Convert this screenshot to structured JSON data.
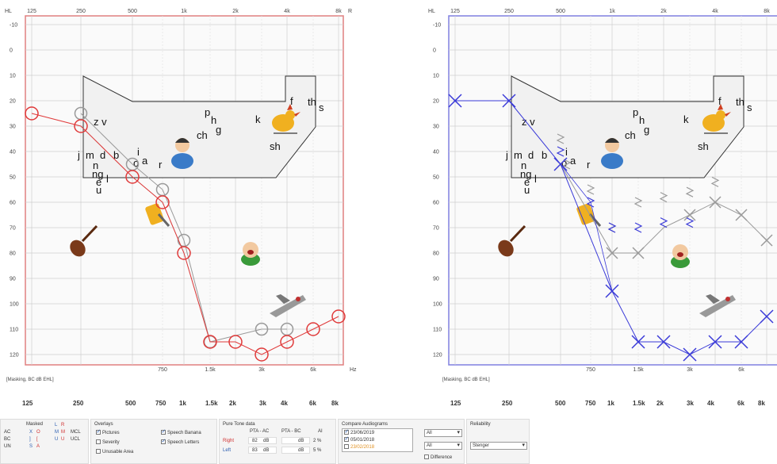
{
  "top_axis_labels": [
    "125",
    "250",
    "500",
    "1k",
    "2k",
    "4k",
    "8k"
  ],
  "hl_label": "HL",
  "ear_label_right": "R",
  "ear_label_left": "L",
  "hz_label": "Hz",
  "inter_labels": [
    "750",
    "1.5k",
    "3k",
    "6k"
  ],
  "db_labels": [
    "-10",
    "0",
    "10",
    "20",
    "30",
    "40",
    "50",
    "60",
    "70",
    "80",
    "90",
    "100",
    "110",
    "120"
  ],
  "masking_note": "[Masking, BC dB EHL]",
  "speech_letters": {
    "row_zv": "z  v",
    "p": "p",
    "h": "h",
    "g": "g",
    "ch": "ch",
    "k": "k",
    "f": "f",
    "th": "th",
    "s": "s",
    "sh": "sh",
    "j": "j",
    "m": "m",
    "d": "d",
    "b": "b",
    "i": "i",
    "o": "o",
    "a": "a",
    "r": "r",
    "n": "n",
    "ng": "ng",
    "e": "e",
    "l": "l",
    "u": "u"
  },
  "freq_bar": [
    "125",
    "250",
    "500",
    "750",
    "1k",
    "1.5k",
    "2k",
    "3k",
    "4k",
    "6k",
    "8k"
  ],
  "masked_box": {
    "title": "Masked",
    "rows": [
      "AC",
      "BC",
      "UN"
    ],
    "lr": [
      "L",
      "R"
    ],
    "mcl": "MCL",
    "ucl": "UCL",
    "sym": [
      [
        "X",
        "O"
      ],
      [
        "]",
        "["
      ],
      [
        "S",
        "A"
      ]
    ],
    "mm": [
      "M",
      "M"
    ],
    "uu": [
      "U",
      "U"
    ]
  },
  "overlays": {
    "title": "Overlays",
    "items": [
      {
        "label": "Pictures",
        "checked": true
      },
      {
        "label": "Severity",
        "checked": false
      },
      {
        "label": "Unusable Area",
        "checked": false
      },
      {
        "label": "Speech Banana",
        "checked": true
      },
      {
        "label": "Speech Letters",
        "checked": true
      }
    ]
  },
  "pure_tone": {
    "title": "Pure Tone data",
    "headers": [
      "PTA - AC",
      "PTA - BC",
      "AI"
    ],
    "rows": [
      {
        "ear": "Right",
        "ac": "82",
        "ac_unit": "dB",
        "bc_unit": "dB",
        "ai": "2",
        "ai_unit": "%"
      },
      {
        "ear": "Left",
        "ac": "83",
        "ac_unit": "dB",
        "bc_unit": "dB",
        "ai": "5",
        "ai_unit": "%"
      }
    ]
  },
  "compare": {
    "title": "Compare Audiograms",
    "dates": [
      "23/06/2019",
      "05/01/2018",
      "23/02/2018"
    ],
    "select1": "All",
    "select2": "All",
    "difference_label": "Difference"
  },
  "reliability": {
    "title": "Reliability",
    "value": "Stenger"
  },
  "colors": {
    "right": "#e03a3a",
    "left": "#3a3ad8",
    "grey": "#9a9a9a"
  }
}
